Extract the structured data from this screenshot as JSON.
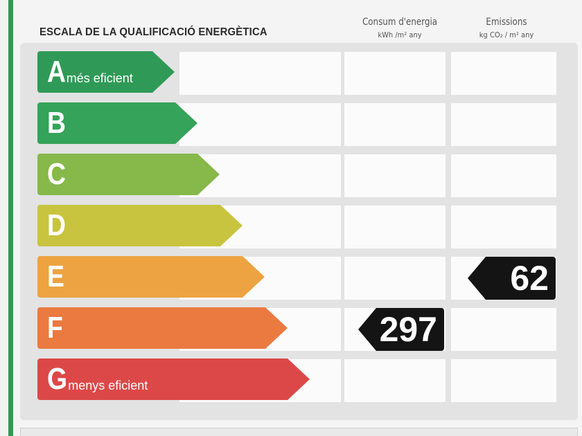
{
  "title": "ESCALA DE LA QUALIFICACIÓ ENERGÈTICA",
  "columns": {
    "consum": {
      "label": "Consum d'energia",
      "unit": "kWh /m² any"
    },
    "emissions": {
      "label": "Emissions",
      "unit": "kg CO₂ / m² any"
    }
  },
  "ratings": [
    {
      "letter": "A",
      "note": "més eficient",
      "color": "#2f9a57"
    },
    {
      "letter": "B",
      "note": "",
      "color": "#35a35a"
    },
    {
      "letter": "C",
      "note": "",
      "color": "#86b84a"
    },
    {
      "letter": "D",
      "note": "",
      "color": "#c8c43f"
    },
    {
      "letter": "E",
      "note": "",
      "color": "#eda341"
    },
    {
      "letter": "F",
      "note": "",
      "color": "#ea7a40"
    },
    {
      "letter": "G",
      "note": "menys eficient",
      "color": "#dc4848"
    }
  ],
  "results": {
    "consum": {
      "value": "297",
      "rating": "F"
    },
    "emissions": {
      "value": "62",
      "rating": "E"
    }
  }
}
